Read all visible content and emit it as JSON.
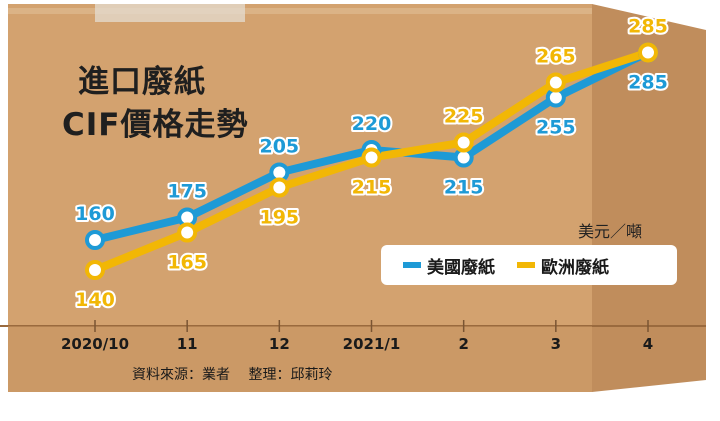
{
  "title_line1": "進口廢紙",
  "title_line2": "CIF價格走勢",
  "unit": "美元／噸",
  "source": "資料來源：業者　 整理：邱莉玲",
  "colors": {
    "usa": "#1E9AD6",
    "europe": "#F2B705",
    "box": "#D2A06E"
  },
  "chart_data": {
    "type": "line",
    "categories": [
      "2020/10",
      "11",
      "12",
      "2021/1",
      "2",
      "3",
      "4"
    ],
    "series": [
      {
        "name": "美國廢紙",
        "values": [
          160,
          175,
          205,
          220,
          215,
          255,
          285
        ]
      },
      {
        "name": "歐洲廢紙",
        "values": [
          140,
          165,
          195,
          215,
          225,
          265,
          285
        ]
      }
    ],
    "ylim": [
      120,
      300
    ],
    "legend_position": "right"
  }
}
